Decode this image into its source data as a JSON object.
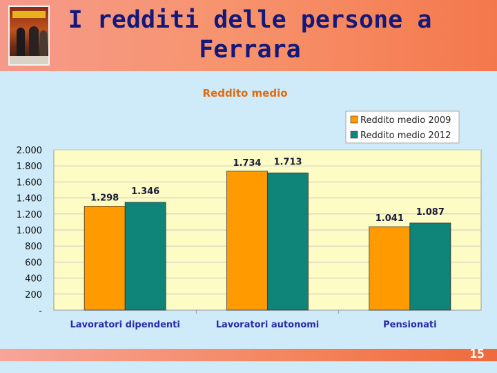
{
  "slide": {
    "title": "I redditi delle persone a Ferrara",
    "page_number": "15",
    "header_image": "photo-thumbnail"
  },
  "colors": {
    "series_2009": "#ff9a00",
    "series_2012": "#0f8478",
    "plot_bg": "#fcfcc4",
    "title_color": "#13197a",
    "chart_title_color": "#e06c10",
    "axis_label_color": "#2a2aa8"
  },
  "chart_data": {
    "type": "bar",
    "title": "Reddito medio",
    "categories": [
      "Lavoratori dipendenti",
      "Lavoratori autonomi",
      "Pensionati"
    ],
    "series": [
      {
        "name": "Reddito medio 2009",
        "values": [
          1298,
          1734,
          1041
        ],
        "labels": [
          "1.298",
          "1.734",
          "1.041"
        ]
      },
      {
        "name": "Reddito medio 2012",
        "values": [
          1346,
          1713,
          1087
        ],
        "labels": [
          "1.346",
          "1.713",
          "1.087"
        ]
      }
    ],
    "ylim": [
      0,
      2000
    ],
    "y_ticks": [
      0,
      200,
      400,
      600,
      800,
      1000,
      1200,
      1400,
      1600,
      1800,
      2000
    ],
    "y_tick_labels": [
      "-",
      "200",
      "400",
      "600",
      "800",
      "1.000",
      "1.200",
      "1.400",
      "1.600",
      "1.800",
      "2.000"
    ],
    "grid": "horizontal",
    "legend_position": "top-right",
    "xlabel": "",
    "ylabel": ""
  }
}
